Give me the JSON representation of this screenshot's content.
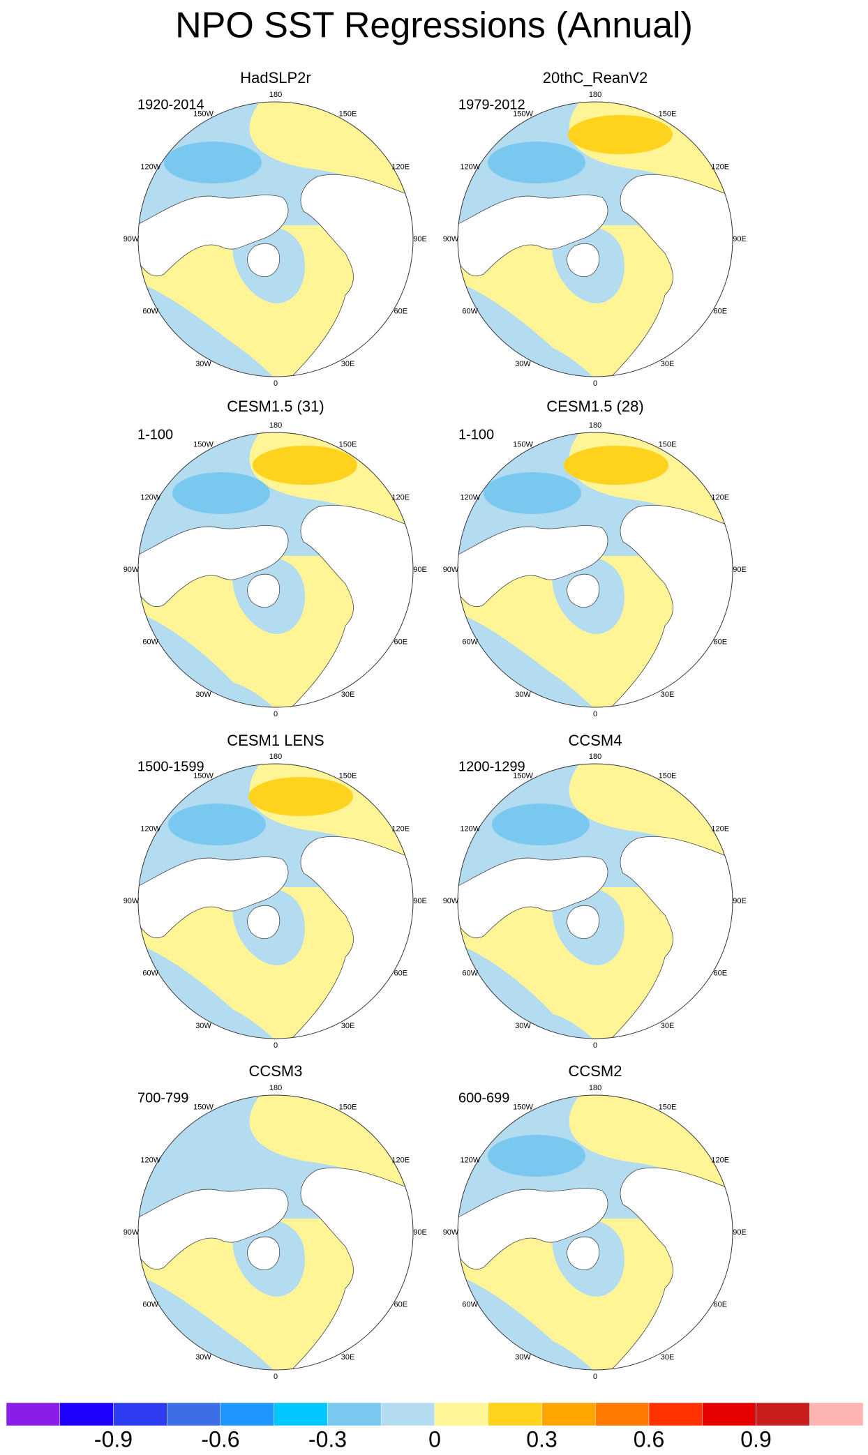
{
  "title": "NPO SST Regressions (Annual)",
  "longitude_labels": [
    "180",
    "150E",
    "120E",
    "90E",
    "60E",
    "30E",
    "0",
    "30W",
    "60W",
    "90W",
    "120W",
    "150W"
  ],
  "panels": [
    {
      "title": "HadSLP2r",
      "period": "1920-2014"
    },
    {
      "title": "20thC_ReanV2",
      "period": "1979-2012"
    },
    {
      "title": "CESM1.5 (31)",
      "period": "1-100"
    },
    {
      "title": "CESM1.5 (28)",
      "period": "1-100"
    },
    {
      "title": "CESM1 LENS",
      "period": "1500-1599"
    },
    {
      "title": "CCSM4",
      "period": "1200-1299"
    },
    {
      "title": "CCSM3",
      "period": "700-799"
    },
    {
      "title": "CCSM2",
      "period": "600-699"
    }
  ],
  "colorbar": {
    "colors": [
      "#8a1ee8",
      "#1e00ff",
      "#2d3cf0",
      "#3c6ee6",
      "#1e96ff",
      "#00c8ff",
      "#78c8f0",
      "#b4dcf0",
      "#fff596",
      "#ffd21e",
      "#ffa500",
      "#ff7800",
      "#ff3200",
      "#e60000",
      "#c81e1e",
      "#ffb4b4"
    ],
    "lim": [
      -1.2,
      1.2
    ],
    "ticks": [
      -0.9,
      -0.6,
      -0.3,
      0,
      0.3,
      0.6,
      0.9
    ]
  }
}
